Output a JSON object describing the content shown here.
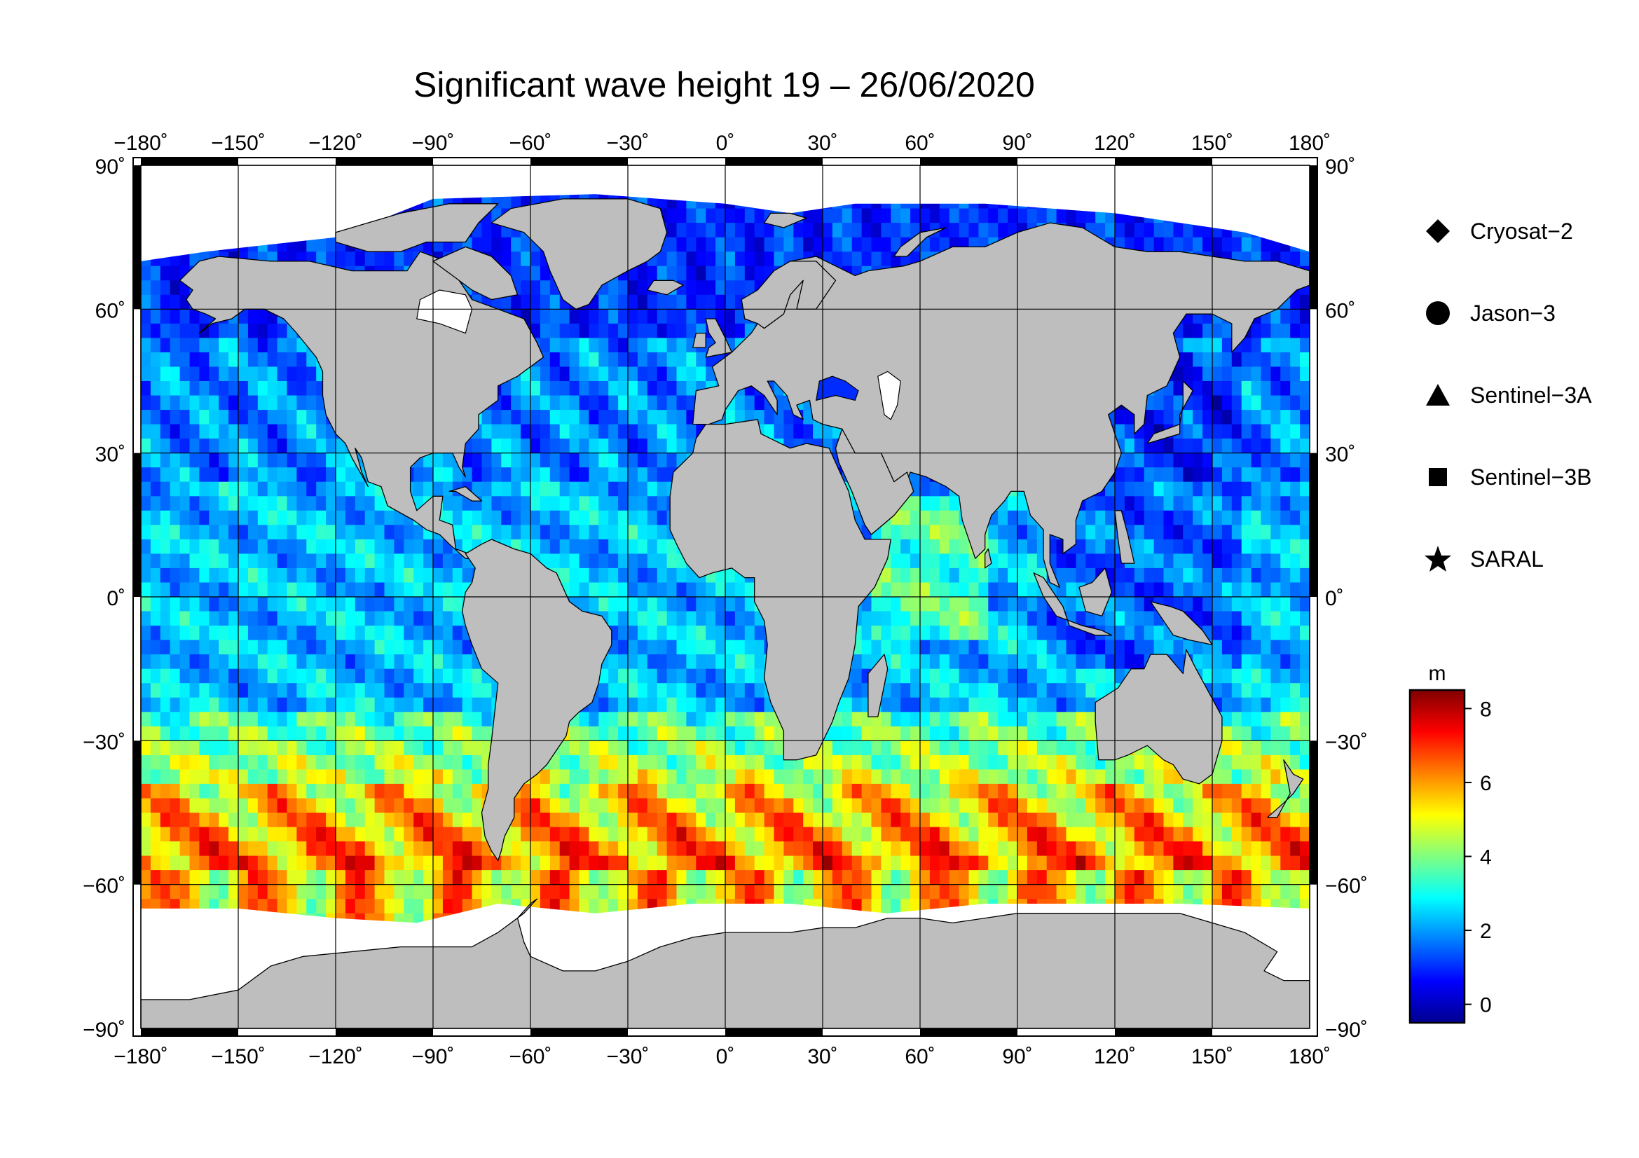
{
  "title": "Significant wave height 19 – 26/06/2020",
  "map": {
    "projection": "equirectangular",
    "lon_range": [
      -180,
      180
    ],
    "lat_range": [
      -90,
      90
    ],
    "lon_ticks": [
      -180,
      -150,
      -120,
      -90,
      -60,
      -30,
      0,
      30,
      60,
      90,
      120,
      150,
      180
    ],
    "lat_ticks": [
      90,
      60,
      30,
      0,
      -30,
      -60,
      -90
    ],
    "lon_labels": [
      "−180˚",
      "−150˚",
      "−120˚",
      "−90˚",
      "−60˚",
      "−30˚",
      "0˚",
      "30˚",
      "60˚",
      "90˚",
      "120˚",
      "150˚",
      "180˚"
    ],
    "lat_labels": [
      "90˚",
      "60˚",
      "30˚",
      "0˚",
      "−30˚",
      "−60˚",
      "−90˚"
    ],
    "grid": true,
    "land_color": "#bebebe",
    "ice_color": "#ffffff"
  },
  "legend": {
    "items": [
      {
        "label": "Cryosat−2",
        "symbol": "diamond"
      },
      {
        "label": "Jason−3",
        "symbol": "circle"
      },
      {
        "label": "Sentinel−3A",
        "symbol": "triangle"
      },
      {
        "label": "Sentinel−3B",
        "symbol": "square"
      },
      {
        "label": "SARAL",
        "symbol": "star"
      }
    ]
  },
  "colorbar": {
    "unit": "m",
    "range": [
      -0.5,
      8.5
    ],
    "tick_values": [
      0,
      2,
      4,
      6,
      8
    ],
    "tick_labels": [
      "0",
      "2",
      "4",
      "6",
      "8"
    ],
    "colormap": [
      "#00008f",
      "#0000ff",
      "#0080ff",
      "#00ffff",
      "#80ff80",
      "#ffff00",
      "#ff8000",
      "#ff0000",
      "#800000"
    ]
  }
}
